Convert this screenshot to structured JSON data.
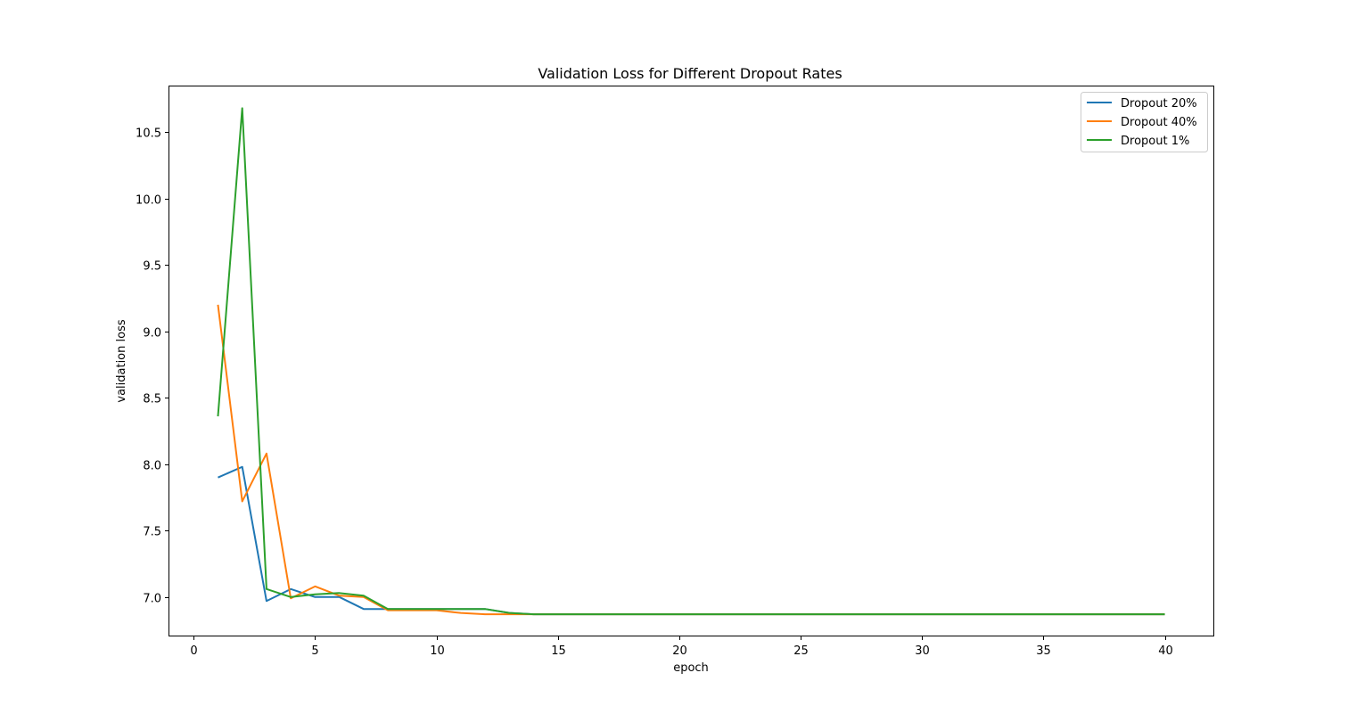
{
  "chart_data": {
    "type": "line",
    "title": "Validation Loss for Different Dropout Rates",
    "xlabel": "epoch",
    "ylabel": "validation loss",
    "xlim": [
      -1,
      42
    ],
    "ylim": [
      6.71,
      10.85
    ],
    "xticks": [
      0,
      5,
      10,
      15,
      20,
      25,
      30,
      35,
      40
    ],
    "yticks": [
      7.0,
      7.5,
      8.0,
      8.5,
      9.0,
      9.5,
      10.0,
      10.5
    ],
    "ytick_labels": [
      "7.0",
      "7.5",
      "8.0",
      "8.5",
      "9.0",
      "9.5",
      "10.0",
      "10.5"
    ],
    "grid": false,
    "legend_position": "top-right",
    "x": [
      1,
      2,
      3,
      4,
      5,
      6,
      7,
      8,
      9,
      10,
      11,
      12,
      13,
      14,
      15,
      16,
      17,
      18,
      19,
      20,
      21,
      22,
      23,
      24,
      25,
      26,
      27,
      28,
      29,
      30,
      31,
      32,
      33,
      34,
      35,
      36,
      37,
      38,
      39,
      40
    ],
    "series": [
      {
        "name": "Dropout 20%",
        "color": "#1f77b4",
        "values": [
          7.9,
          7.98,
          6.97,
          7.06,
          7.0,
          7.0,
          6.91,
          6.91,
          6.91,
          6.91,
          6.91,
          6.91,
          6.88,
          6.87,
          6.87,
          6.87,
          6.87,
          6.87,
          6.87,
          6.87,
          6.87,
          6.87,
          6.87,
          6.87,
          6.87,
          6.87,
          6.87,
          6.87,
          6.87,
          6.87,
          6.87,
          6.87,
          6.87,
          6.87,
          6.87,
          6.87,
          6.87,
          6.87,
          6.87,
          6.87
        ]
      },
      {
        "name": "Dropout 40%",
        "color": "#ff7f0e",
        "values": [
          9.2,
          7.72,
          8.08,
          6.99,
          7.08,
          7.01,
          7.0,
          6.9,
          6.9,
          6.9,
          6.88,
          6.87,
          6.87,
          6.87,
          6.87,
          6.87,
          6.87,
          6.87,
          6.87,
          6.87,
          6.87,
          6.87,
          6.87,
          6.87,
          6.87,
          6.87,
          6.87,
          6.87,
          6.87,
          6.87,
          6.87,
          6.87,
          6.87,
          6.87,
          6.87,
          6.87,
          6.87,
          6.87,
          6.87,
          6.87
        ]
      },
      {
        "name": "Dropout 1%",
        "color": "#2ca02c",
        "values": [
          8.36,
          10.68,
          7.06,
          7.0,
          7.02,
          7.03,
          7.01,
          6.91,
          6.91,
          6.91,
          6.91,
          6.91,
          6.88,
          6.87,
          6.87,
          6.87,
          6.87,
          6.87,
          6.87,
          6.87,
          6.87,
          6.87,
          6.87,
          6.87,
          6.87,
          6.87,
          6.87,
          6.87,
          6.87,
          6.87,
          6.87,
          6.87,
          6.87,
          6.87,
          6.87,
          6.87,
          6.87,
          6.87,
          6.87,
          6.87
        ]
      }
    ]
  }
}
